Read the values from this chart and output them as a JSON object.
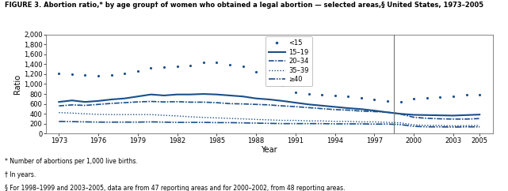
{
  "title": "FIGURE 3. Abortion ratio,* by age group† of women who obtained a legal abortion — selected areas,§ United States, 1973–2005",
  "xlabel": "Year",
  "ylabel": "Ratio",
  "footnotes": [
    "* Number of abortions per 1,000 live births.",
    "† In years.",
    "§ For 1998–1999 and 2003–2005, data are from 47 reporting areas and for 2000–2002, from 48 reporting areas."
  ],
  "color": "#1a4f8a",
  "vertical_line_x": 1998.5,
  "ylim": [
    0,
    2000
  ],
  "yticks": [
    0,
    200,
    400,
    600,
    800,
    1000,
    1200,
    1400,
    1600,
    1800,
    2000
  ],
  "xticks": [
    1973,
    1976,
    1979,
    1982,
    1985,
    1988,
    1991,
    1994,
    1997,
    2000,
    2003,
    2005
  ],
  "xlim": [
    1972,
    2006
  ],
  "series": {
    "lt15": {
      "label": "<15",
      "years": [
        1973,
        1974,
        1975,
        1976,
        1977,
        1978,
        1979,
        1980,
        1981,
        1982,
        1983,
        1984,
        1985,
        1986,
        1987,
        1988,
        1989,
        1990,
        1991,
        1992,
        1993,
        1994,
        1995,
        1996,
        1997,
        1998,
        1999,
        2000,
        2001,
        2002,
        2003,
        2004,
        2005
      ],
      "values": [
        1210,
        1195,
        1175,
        1165,
        1185,
        1215,
        1260,
        1330,
        1340,
        1365,
        1375,
        1430,
        1430,
        1395,
        1355,
        1240,
        1100,
        970,
        840,
        800,
        790,
        770,
        750,
        720,
        690,
        660,
        640,
        700,
        720,
        740,
        760,
        780,
        790
      ]
    },
    "age1519": {
      "label": "15–19",
      "years": [
        1973,
        1974,
        1975,
        1976,
        1977,
        1978,
        1979,
        1980,
        1981,
        1982,
        1983,
        1984,
        1985,
        1986,
        1987,
        1988,
        1989,
        1990,
        1991,
        1992,
        1993,
        1994,
        1995,
        1996,
        1997,
        1998,
        1999,
        2000,
        2001,
        2002,
        2003,
        2004,
        2005
      ],
      "values": [
        640,
        670,
        640,
        660,
        690,
        710,
        750,
        790,
        770,
        790,
        790,
        800,
        790,
        770,
        750,
        710,
        690,
        660,
        625,
        590,
        565,
        540,
        515,
        495,
        465,
        430,
        400,
        380,
        375,
        370,
        365,
        375,
        385
      ]
    },
    "age2034": {
      "label": "20–34",
      "years": [
        1973,
        1974,
        1975,
        1976,
        1977,
        1978,
        1979,
        1980,
        1981,
        1982,
        1983,
        1984,
        1985,
        1986,
        1987,
        1988,
        1989,
        1990,
        1991,
        1992,
        1993,
        1994,
        1995,
        1996,
        1997,
        1998,
        1999,
        2000,
        2001,
        2002,
        2003,
        2004,
        2005
      ],
      "values": [
        560,
        580,
        570,
        590,
        610,
        625,
        640,
        650,
        640,
        645,
        635,
        635,
        625,
        605,
        600,
        590,
        580,
        560,
        545,
        525,
        505,
        485,
        475,
        455,
        445,
        435,
        395,
        330,
        310,
        300,
        295,
        295,
        305
      ]
    },
    "age3539": {
      "label": "35–39",
      "years": [
        1973,
        1974,
        1975,
        1976,
        1977,
        1978,
        1979,
        1980,
        1981,
        1982,
        1983,
        1984,
        1985,
        1986,
        1987,
        1988,
        1989,
        1990,
        1991,
        1992,
        1993,
        1994,
        1995,
        1996,
        1997,
        1998,
        1999,
        2000,
        2001,
        2002,
        2003,
        2004,
        2005
      ],
      "values": [
        425,
        415,
        400,
        390,
        385,
        385,
        385,
        385,
        370,
        358,
        340,
        328,
        318,
        308,
        298,
        288,
        278,
        268,
        268,
        258,
        258,
        248,
        248,
        238,
        238,
        228,
        218,
        178,
        168,
        168,
        158,
        163,
        168
      ]
    },
    "agege40": {
      "label": "≥40",
      "years": [
        1973,
        1974,
        1975,
        1976,
        1977,
        1978,
        1979,
        1980,
        1981,
        1982,
        1983,
        1984,
        1985,
        1986,
        1987,
        1988,
        1989,
        1990,
        1991,
        1992,
        1993,
        1994,
        1995,
        1996,
        1997,
        1998,
        1999,
        2000,
        2001,
        2002,
        2003,
        2004,
        2005
      ],
      "values": [
        248,
        243,
        238,
        233,
        233,
        233,
        233,
        238,
        233,
        228,
        228,
        228,
        223,
        223,
        218,
        213,
        208,
        203,
        203,
        203,
        203,
        198,
        198,
        198,
        193,
        193,
        183,
        148,
        138,
        138,
        133,
        138,
        138
      ]
    }
  }
}
